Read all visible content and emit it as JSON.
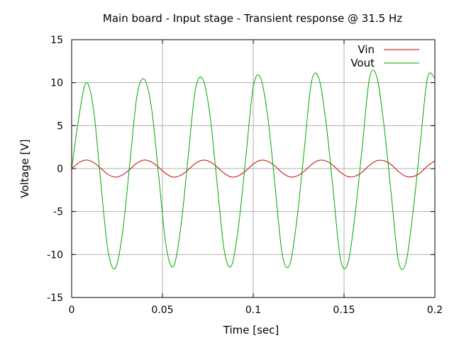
{
  "chart_data": {
    "type": "line",
    "title": "Main board - Input stage - Transient response @ 31.5 Hz",
    "xlabel": "Time [sec]",
    "ylabel": "Voltage [V]",
    "xlim": [
      0,
      0.2
    ],
    "ylim": [
      -15,
      15
    ],
    "xticks": [
      0,
      0.05,
      0.1,
      0.15,
      0.2
    ],
    "xtick_labels": [
      "0",
      "0.05",
      "0.1",
      "0.15",
      "0.2"
    ],
    "yticks": [
      -15,
      -10,
      -5,
      0,
      5,
      10,
      15
    ],
    "ytick_labels": [
      "-15",
      "-10",
      "-5",
      "0",
      "5",
      "10",
      "15"
    ],
    "grid": true,
    "legend_position": "top-right",
    "frequency_hz": 31.5,
    "series": [
      {
        "name": "Vin",
        "color": "#cc0000",
        "x": [
          0,
          0.004,
          0.008,
          0.012,
          0.016,
          0.02,
          0.024,
          0.028,
          0.032,
          0.036,
          0.04,
          0.044,
          0.048,
          0.052,
          0.056,
          0.06,
          0.064,
          0.068,
          0.072,
          0.076,
          0.08,
          0.084,
          0.088,
          0.092,
          0.096,
          0.1,
          0.104,
          0.108,
          0.112,
          0.116,
          0.12,
          0.124,
          0.128,
          0.132,
          0.136,
          0.14,
          0.144,
          0.148,
          0.152,
          0.156,
          0.16,
          0.164,
          0.168,
          0.172,
          0.176,
          0.18,
          0.184,
          0.188,
          0.192,
          0.196,
          0.2
        ],
        "y": [
          0,
          0.69,
          1.0,
          0.72,
          0.04,
          -0.67,
          -1.0,
          -0.74,
          -0.09,
          0.64,
          1.0,
          0.76,
          0.13,
          -0.61,
          -0.99,
          -0.79,
          -0.17,
          0.58,
          0.98,
          0.81,
          0.21,
          -0.55,
          -0.98,
          -0.83,
          -0.25,
          0.52,
          0.97,
          0.85,
          0.29,
          -0.49,
          -0.96,
          -0.87,
          -0.33,
          0.46,
          0.95,
          0.89,
          0.37,
          -0.42,
          -0.93,
          -0.9,
          -0.41,
          0.39,
          0.92,
          0.92,
          0.45,
          -0.35,
          -0.9,
          -0.93,
          -0.49,
          0.32,
          0.88
        ]
      },
      {
        "name": "Vout",
        "color": "#00aa00",
        "x": [
          0,
          0.004,
          0.008,
          0.012,
          0.016,
          0.02,
          0.024,
          0.028,
          0.032,
          0.036,
          0.04,
          0.044,
          0.048,
          0.052,
          0.056,
          0.06,
          0.064,
          0.068,
          0.072,
          0.076,
          0.08,
          0.084,
          0.088,
          0.092,
          0.096,
          0.1,
          0.104,
          0.108,
          0.112,
          0.116,
          0.12,
          0.124,
          0.128,
          0.132,
          0.136,
          0.14,
          0.144,
          0.148,
          0.152,
          0.156,
          0.16,
          0.164,
          0.168,
          0.172,
          0.176,
          0.18,
          0.184,
          0.188,
          0.192,
          0.196,
          0.2
        ],
        "y": [
          0,
          6.0,
          10.0,
          7.0,
          -1.5,
          -9.5,
          -11.6,
          -7.5,
          0.5,
          8.5,
          10.4,
          7.0,
          -1.0,
          -9.0,
          -11.4,
          -7.0,
          1.0,
          9.0,
          10.5,
          6.5,
          -1.5,
          -9.5,
          -11.3,
          -6.5,
          1.5,
          9.5,
          10.6,
          6.0,
          -2.0,
          -10.0,
          -11.2,
          -6.0,
          2.0,
          10.0,
          10.6,
          5.5,
          -2.5,
          -10.5,
          -11.1,
          -5.5,
          2.5,
          10.5,
          10.7,
          5.0,
          -3.0,
          -10.8,
          -11.0,
          -5.0,
          3.0,
          10.6,
          10.5
        ]
      }
    ]
  }
}
